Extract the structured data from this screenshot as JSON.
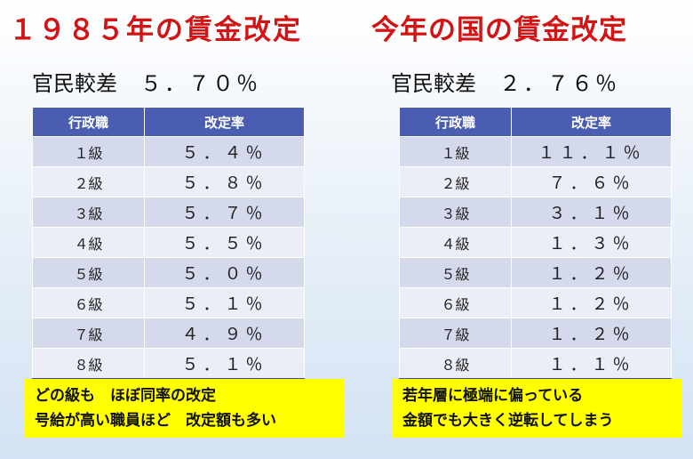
{
  "left": {
    "title": "１９８５年の賃金改定",
    "diff_label": "官民較差",
    "diff_value": "５．７０％",
    "table": {
      "headers": [
        "行政職",
        "改定率"
      ],
      "rows": [
        [
          "１級",
          "５．４％"
        ],
        [
          "２級",
          "５．８％"
        ],
        [
          "３級",
          "５．７％"
        ],
        [
          "４級",
          "５．５％"
        ],
        [
          "５級",
          "５．０％"
        ],
        [
          "６級",
          "５．１％"
        ],
        [
          "７級",
          "４．９％"
        ],
        [
          "８級",
          "５．１％"
        ]
      ]
    },
    "note": [
      "どの級も　ほぼ同率の改定",
      "号給が高い職員ほど　改定額も多い"
    ]
  },
  "right": {
    "title": "今年の国の賃金改定",
    "diff_label": "官民較差",
    "diff_value": "２．７６％",
    "table": {
      "headers": [
        "行政職",
        "改定率"
      ],
      "rows": [
        [
          "１級",
          "１１．１％"
        ],
        [
          "２級",
          "７．６％"
        ],
        [
          "３級",
          "３．１％"
        ],
        [
          "４級",
          "１．３％"
        ],
        [
          "５級",
          "１．２％"
        ],
        [
          "６級",
          "１．２％"
        ],
        [
          "７級",
          "１．２％"
        ],
        [
          "８級",
          "１．１％"
        ]
      ]
    },
    "note": [
      "若年層に極端に偏っている",
      "金額でも大きく逆転してしまう"
    ]
  },
  "colors": {
    "title": "#d21414",
    "header_bg": "#4a5db0",
    "row_odd": "#d5d9ec",
    "row_even": "#eceef7",
    "note_bg": "#ffff00"
  }
}
